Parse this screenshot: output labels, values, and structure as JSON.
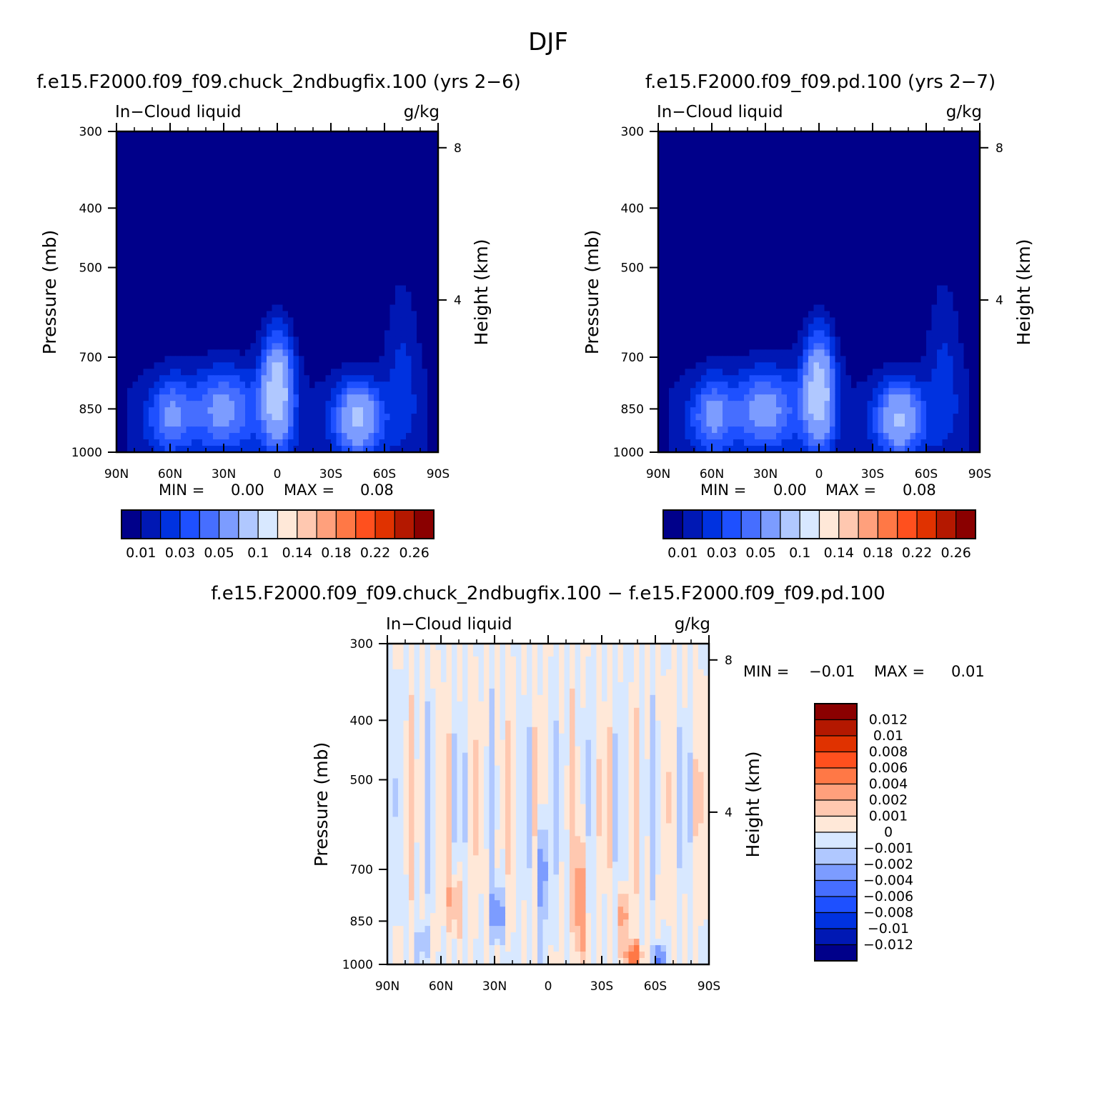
{
  "figure": {
    "title": "DJF"
  },
  "colors": {
    "level_palette": [
      "#00008a",
      "#0018b4",
      "#0032e0",
      "#1e50ff",
      "#466eff",
      "#7c9cff",
      "#b0c8ff",
      "#d8e8ff",
      "#ffe8d8",
      "#ffc8b0",
      "#ffa07c",
      "#ff7846",
      "#ff501e",
      "#e03200",
      "#b41800",
      "#8a0000"
    ],
    "diff_palette": [
      "#00008a",
      "#0018b4",
      "#0032e0",
      "#1e50ff",
      "#466eff",
      "#7c9cff",
      "#b0c8ff",
      "#d8e8ff",
      "#ffe8d8",
      "#ffc8b0",
      "#ffa07c",
      "#ff7846",
      "#ff501e",
      "#e03200",
      "#b41800",
      "#8a0000"
    ]
  },
  "chart_data": [
    {
      "type": "heatmap",
      "id": "panel-a",
      "title": "f.e15.F2000.f09_f09.chuck_2ndbugfix.100 (yrs 2−6)",
      "variable_label": "In−Cloud liquid",
      "units_label": "g/kg",
      "xlabel": "",
      "ylabel": "Pressure (mb)",
      "y2label": "Height (km)",
      "x_ticks": [
        "90N",
        "60N",
        "30N",
        "0",
        "30S",
        "60S",
        "90S"
      ],
      "x_range": [
        90,
        -90
      ],
      "y_ticks": [
        "300",
        "400",
        "500",
        "700",
        "850",
        "1000"
      ],
      "y_tick_values": [
        300,
        400,
        500,
        700,
        850,
        1000
      ],
      "y_range": [
        300,
        1000
      ],
      "y_scale": "log",
      "y2_ticks": [
        "8",
        "4"
      ],
      "y2_tick_values": [
        8,
        4
      ],
      "min_label": "MIN =",
      "min_value": "0.00",
      "max_label": "MAX =",
      "max_value": "0.08",
      "colorbar_orientation": "horizontal",
      "colorbar_levels": [
        0.01,
        0.02,
        0.03,
        0.04,
        0.05,
        0.07,
        0.1,
        0.12,
        0.14,
        0.16,
        0.18,
        0.2,
        0.22,
        0.24,
        0.26
      ],
      "colorbar_labels": [
        "0.01",
        "0.03",
        "0.05",
        "0.1",
        "0.14",
        "0.18",
        "0.22",
        "0.26"
      ],
      "field_features": [
        {
          "lat": 0,
          "p": 790,
          "peak": 0.078,
          "width_lat": 9,
          "width_lnp": 0.22
        },
        {
          "lat": -45,
          "p": 880,
          "peak": 0.062,
          "width_lat": 13,
          "width_lnp": 0.14
        },
        {
          "lat": 30,
          "p": 850,
          "peak": 0.045,
          "width_lat": 18,
          "width_lnp": 0.16
        },
        {
          "lat": 60,
          "p": 870,
          "peak": 0.04,
          "width_lat": 12,
          "width_lnp": 0.15
        },
        {
          "lat": -70,
          "p": 700,
          "peak": 0.018,
          "width_lat": 10,
          "width_lnp": 0.35
        }
      ]
    },
    {
      "type": "heatmap",
      "id": "panel-b",
      "title": "f.e15.F2000.f09_f09.pd.100 (yrs 2−7)",
      "variable_label": "In−Cloud liquid",
      "units_label": "g/kg",
      "xlabel": "",
      "ylabel": "Pressure (mb)",
      "y2label": "Height (km)",
      "x_ticks": [
        "90N",
        "60N",
        "30N",
        "0",
        "30S",
        "60S",
        "90S"
      ],
      "x_range": [
        90,
        -90
      ],
      "y_ticks": [
        "300",
        "400",
        "500",
        "700",
        "850",
        "1000"
      ],
      "y_tick_values": [
        300,
        400,
        500,
        700,
        850,
        1000
      ],
      "y_range": [
        300,
        1000
      ],
      "y_scale": "log",
      "y2_ticks": [
        "8",
        "4"
      ],
      "y2_tick_values": [
        8,
        4
      ],
      "min_label": "MIN =",
      "min_value": "0.00",
      "max_label": "MAX =",
      "max_value": "0.08",
      "colorbar_orientation": "horizontal",
      "colorbar_levels": [
        0.01,
        0.02,
        0.03,
        0.04,
        0.05,
        0.07,
        0.1,
        0.12,
        0.14,
        0.16,
        0.18,
        0.2,
        0.22,
        0.24,
        0.26
      ],
      "colorbar_labels": [
        "0.01",
        "0.03",
        "0.05",
        "0.1",
        "0.14",
        "0.18",
        "0.22",
        "0.26"
      ],
      "field_features": [
        {
          "lat": 0,
          "p": 790,
          "peak": 0.077,
          "width_lat": 9,
          "width_lnp": 0.22
        },
        {
          "lat": -45,
          "p": 880,
          "peak": 0.061,
          "width_lat": 13,
          "width_lnp": 0.14
        },
        {
          "lat": 30,
          "p": 850,
          "peak": 0.046,
          "width_lat": 18,
          "width_lnp": 0.16
        },
        {
          "lat": 60,
          "p": 870,
          "peak": 0.041,
          "width_lat": 12,
          "width_lnp": 0.15
        },
        {
          "lat": -70,
          "p": 700,
          "peak": 0.018,
          "width_lat": 10,
          "width_lnp": 0.35
        }
      ]
    },
    {
      "type": "heatmap",
      "id": "panel-diff",
      "title": "f.e15.F2000.f09_f09.chuck_2ndbugfix.100 − f.e15.F2000.f09_f09.pd.100",
      "variable_label": "In−Cloud liquid",
      "units_label": "g/kg",
      "xlabel": "",
      "ylabel": "Pressure (mb)",
      "y2label": "Height (km)",
      "x_ticks": [
        "90N",
        "60N",
        "30N",
        "0",
        "30S",
        "60S",
        "90S"
      ],
      "x_range": [
        90,
        -90
      ],
      "y_ticks": [
        "300",
        "400",
        "500",
        "700",
        "850",
        "1000"
      ],
      "y_tick_values": [
        300,
        400,
        500,
        700,
        850,
        1000
      ],
      "y_range": [
        300,
        1000
      ],
      "y_scale": "log",
      "y2_ticks": [
        "8",
        "4"
      ],
      "y2_tick_values": [
        8,
        4
      ],
      "min_label": "MIN =",
      "min_value": "−0.01",
      "max_label": "MAX =",
      "max_value": "0.01",
      "colorbar_orientation": "vertical",
      "colorbar_levels": [
        -0.012,
        -0.01,
        -0.008,
        -0.006,
        -0.004,
        -0.002,
        -0.001,
        0,
        0.001,
        0.002,
        0.004,
        0.006,
        0.008,
        0.01,
        0.012
      ],
      "colorbar_labels": [
        "0.012",
        "0.01",
        "0.008",
        "0.006",
        "0.004",
        "0.002",
        "0.001",
        "0",
        "−0.001",
        "−0.002",
        "−0.004",
        "−0.006",
        "−0.008",
        "−0.01",
        "−0.012"
      ],
      "field_features": [
        {
          "lat": -48,
          "p": 970,
          "peak": 0.0065,
          "width_lat": 4,
          "width_lnp": 0.05
        },
        {
          "lat": -42,
          "p": 830,
          "peak": 0.003,
          "width_lat": 3,
          "width_lnp": 0.1
        },
        {
          "lat": -18,
          "p": 800,
          "peak": 0.0035,
          "width_lat": 3,
          "width_lnp": 0.25
        },
        {
          "lat": 52,
          "p": 790,
          "peak": 0.0022,
          "width_lat": 5,
          "width_lnp": 0.12
        },
        {
          "lat": 3,
          "p": 700,
          "peak": -0.004,
          "width_lat": 2.5,
          "width_lnp": 0.22
        },
        {
          "lat": 28,
          "p": 830,
          "peak": -0.003,
          "width_lat": 4,
          "width_lnp": 0.1
        },
        {
          "lat": -62,
          "p": 980,
          "peak": -0.005,
          "width_lat": 3,
          "width_lnp": 0.05
        },
        {
          "lat": 70,
          "p": 930,
          "peak": -0.002,
          "width_lat": 3,
          "width_lnp": 0.08
        }
      ]
    }
  ]
}
